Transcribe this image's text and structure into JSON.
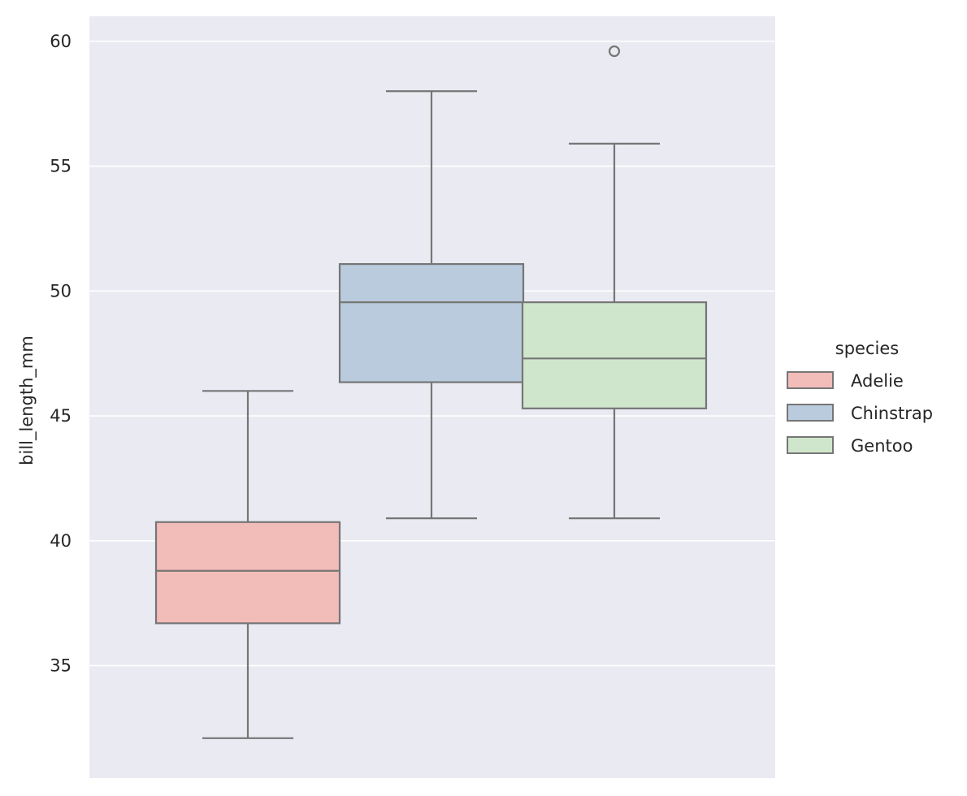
{
  "chart_data": {
    "type": "box",
    "title": "",
    "xlabel": "",
    "ylabel": "bill_length_mm",
    "ylim": [
      30.5,
      61
    ],
    "yticks": [
      35,
      40,
      45,
      50,
      55,
      60
    ],
    "grid": true,
    "background": "#eaeaf2",
    "grid_color": "#ffffff",
    "line_color": "#767676",
    "hue_variable": "species",
    "legend": {
      "title": "species",
      "placement": "right"
    },
    "series": [
      {
        "name": "Adelie",
        "color": "#f2bcb9",
        "whisker_low": 32.1,
        "q1": 36.7,
        "median": 38.8,
        "q3": 40.75,
        "whisker_high": 46.0,
        "outliers": []
      },
      {
        "name": "Chinstrap",
        "color": "#b9cbdd",
        "whisker_low": 40.9,
        "q1": 46.35,
        "median": 49.55,
        "q3": 51.08,
        "whisker_high": 58.0,
        "outliers": []
      },
      {
        "name": "Gentoo",
        "color": "#d0e6cc",
        "whisker_low": 40.9,
        "q1": 45.3,
        "median": 47.3,
        "q3": 49.55,
        "whisker_high": 55.9,
        "outliers": [
          59.6
        ]
      }
    ]
  }
}
